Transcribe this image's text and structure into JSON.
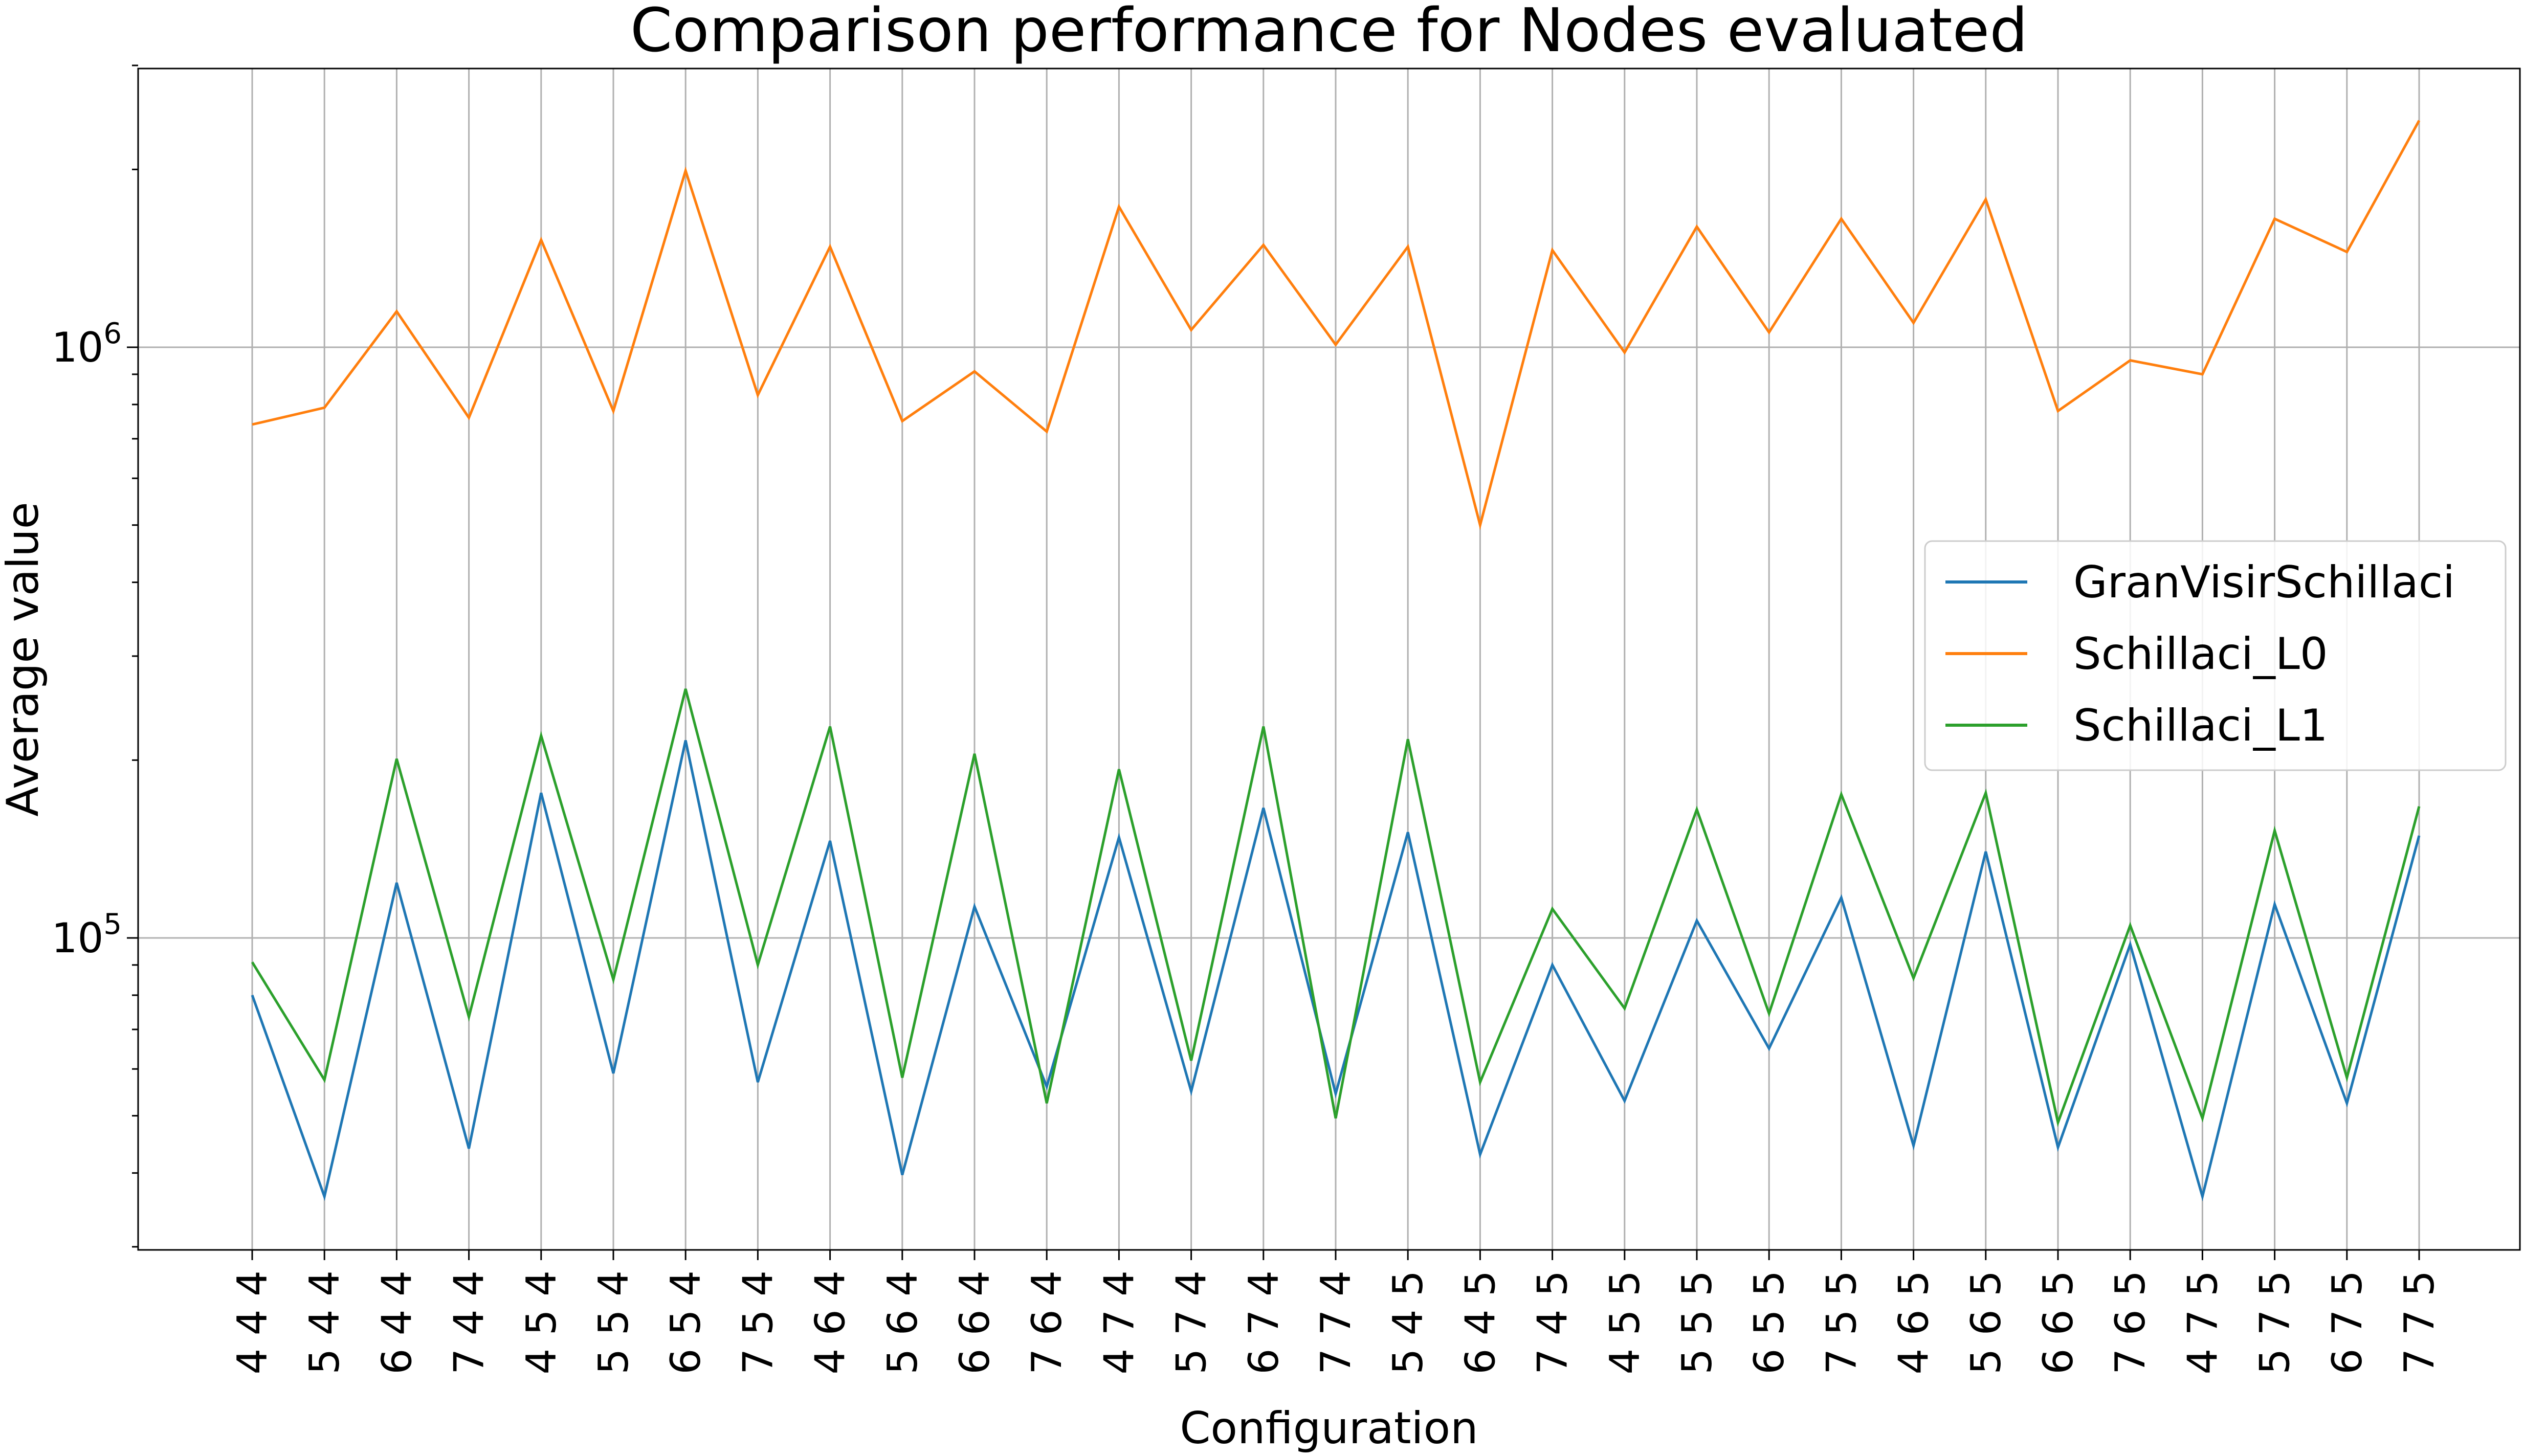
{
  "chart_data": {
    "type": "line",
    "title": "Comparison performance for Nodes evaluated",
    "xlabel": "Configuration",
    "ylabel": "Average value",
    "yscale": "log",
    "ylim": [
      28000,
      3000000
    ],
    "grid": true,
    "legend_position": "center-right",
    "categories": [
      "4 4 4",
      "5 4 4",
      "6 4 4",
      "7 4 4",
      "4 5 4",
      "5 5 4",
      "6 5 4",
      "7 5 4",
      "4 6 4",
      "5 6 4",
      "6 6 4",
      "7 6 4",
      "4 7 4",
      "5 7 4",
      "6 7 4",
      "7 7 4",
      "5 4 5",
      "6 4 5",
      "7 4 5",
      "4 5 5",
      "5 5 5",
      "6 5 5",
      "7 5 5",
      "4 6 5",
      "5 6 5",
      "6 6 5",
      "7 6 5",
      "4 7 5",
      "5 7 5",
      "6 7 5",
      "7 7 5"
    ],
    "y_ticks": [
      {
        "value": 100000,
        "base": "10",
        "exp": "5"
      },
      {
        "value": 1000000,
        "base": "10",
        "exp": "6"
      }
    ],
    "series": [
      {
        "name": "GranVisirSchillaci",
        "color": "#1f77b4",
        "values": [
          80000,
          36500,
          124000,
          44000,
          176000,
          59000,
          216000,
          57000,
          146000,
          39700,
          113000,
          56000,
          148000,
          55000,
          166000,
          54500,
          151000,
          43000,
          90000,
          53000,
          107000,
          65000,
          117000,
          44500,
          140000,
          44200,
          97500,
          36500,
          114000,
          52500,
          149000
        ]
      },
      {
        "name": "Schillaci_L0",
        "color": "#ff7f0e",
        "values": [
          740000,
          790000,
          1150000,
          760000,
          1520000,
          780000,
          1990000,
          830000,
          1480000,
          750000,
          910000,
          720000,
          1730000,
          1070000,
          1490000,
          1010000,
          1480000,
          500000,
          1460000,
          980000,
          1600000,
          1060000,
          1650000,
          1100000,
          1780000,
          780000,
          950000,
          900000,
          1650000,
          1450000,
          2420000
        ]
      },
      {
        "name": "Schillaci_L1",
        "color": "#2ca02c",
        "values": [
          91000,
          57500,
          201000,
          73500,
          220000,
          85000,
          264000,
          90000,
          228000,
          58000,
          205000,
          52500,
          193000,
          62000,
          228000,
          49500,
          217000,
          57000,
          112000,
          76000,
          165000,
          74500,
          175000,
          85500,
          176000,
          48700,
          105000,
          49500,
          152000,
          58000,
          167000
        ]
      }
    ]
  }
}
